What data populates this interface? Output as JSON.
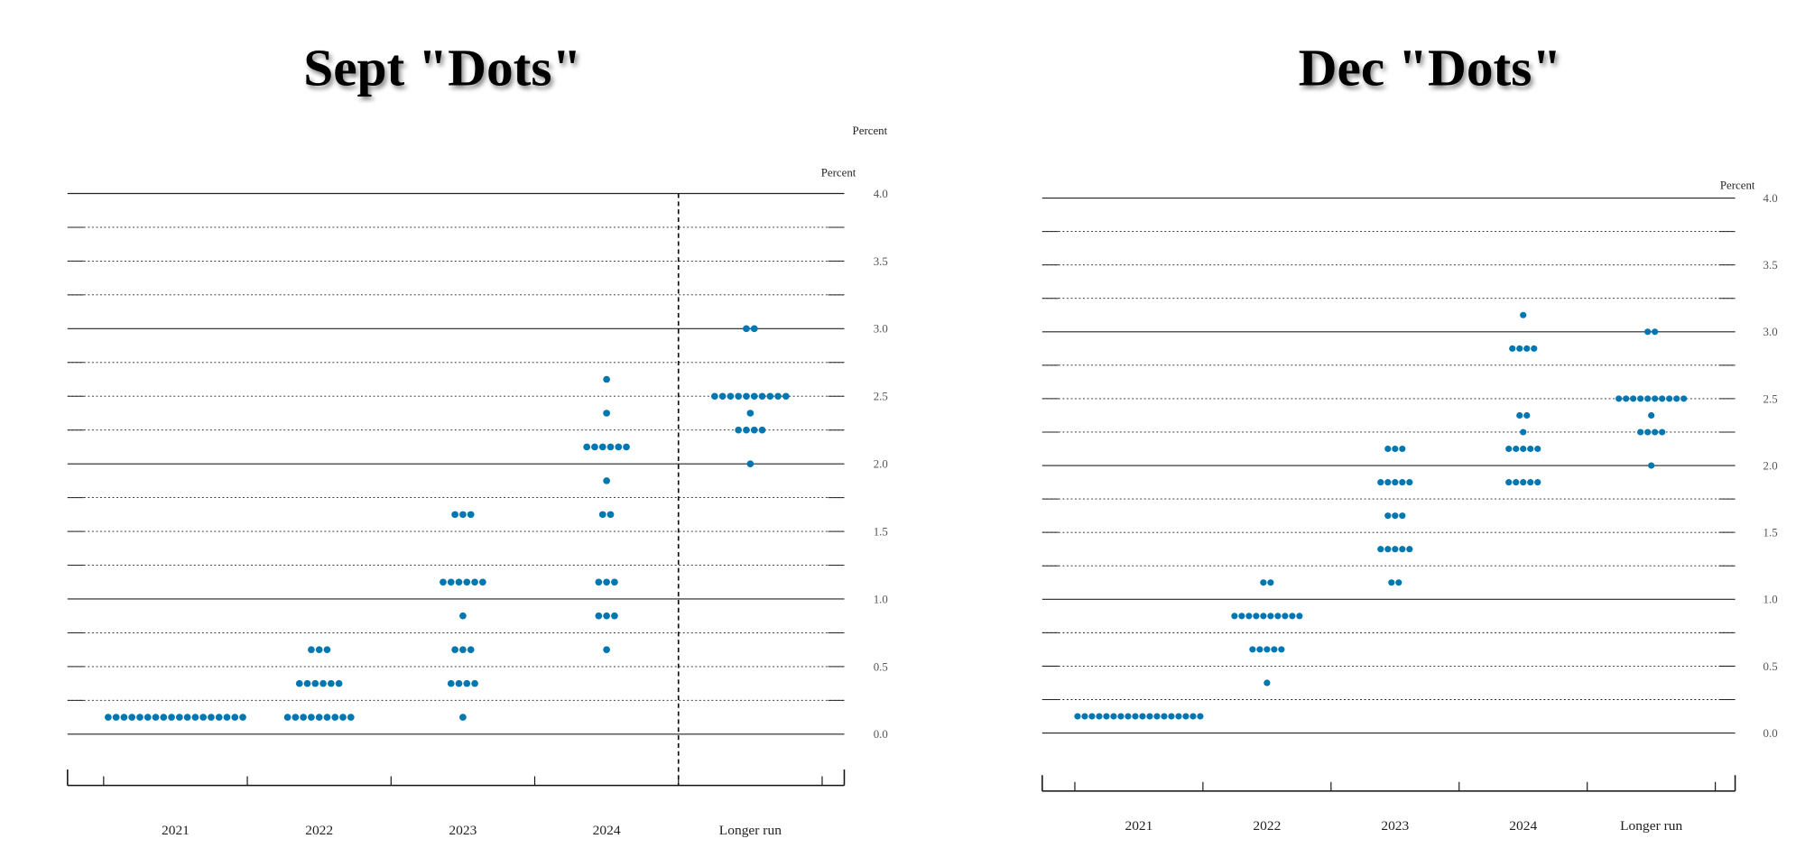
{
  "chart_data": [
    {
      "type": "dot",
      "title": "Sept \"Dots\"",
      "y_labels": [
        "Percent",
        "Percent"
      ],
      "categories": [
        "2021",
        "2022",
        "2023",
        "2024",
        "Longer run"
      ],
      "values": [
        [
          0.125,
          0.125,
          0.125,
          0.125,
          0.125,
          0.125,
          0.125,
          0.125,
          0.125,
          0.125,
          0.125,
          0.125,
          0.125,
          0.125,
          0.125,
          0.125,
          0.125,
          0.125
        ],
        [
          0.125,
          0.125,
          0.125,
          0.125,
          0.125,
          0.125,
          0.125,
          0.125,
          0.125,
          0.375,
          0.375,
          0.375,
          0.375,
          0.375,
          0.375,
          0.625,
          0.625,
          0.625
        ],
        [
          0.125,
          0.375,
          0.375,
          0.375,
          0.375,
          0.625,
          0.625,
          0.625,
          0.875,
          1.125,
          1.125,
          1.125,
          1.125,
          1.125,
          1.125,
          1.625,
          1.625,
          1.625
        ],
        [
          0.625,
          0.875,
          0.875,
          0.875,
          1.125,
          1.125,
          1.125,
          1.625,
          1.625,
          1.875,
          2.125,
          2.125,
          2.125,
          2.125,
          2.125,
          2.125,
          2.375,
          2.625
        ],
        [
          2.0,
          2.25,
          2.25,
          2.25,
          2.25,
          2.375,
          2.5,
          2.5,
          2.5,
          2.5,
          2.5,
          2.5,
          2.5,
          2.5,
          2.5,
          2.5,
          3.0,
          3.0
        ]
      ],
      "color": "#0077b0",
      "divider": true,
      "ylim": [
        0,
        4
      ],
      "yticks": [
        {
          "value": 0,
          "label": "0.0"
        },
        {
          "value": 0.5,
          "label": "0.5"
        },
        {
          "value": 1,
          "label": "1.0"
        },
        {
          "value": 1.5,
          "label": "1.5"
        },
        {
          "value": 2,
          "label": "2.0"
        },
        {
          "value": 2.5,
          "label": "2.5"
        },
        {
          "value": 3,
          "label": "3.0"
        },
        {
          "value": 3.5,
          "label": "3.5"
        },
        {
          "value": 4,
          "label": "4.0"
        }
      ],
      "grid_lines": [
        0,
        0.25,
        0.5,
        0.75,
        1,
        1.25,
        1.5,
        1.75,
        2,
        2.25,
        2.5,
        2.75,
        3,
        3.25,
        3.5,
        3.75,
        4
      ]
    },
    {
      "type": "dot",
      "title": "Dec \"Dots\"",
      "y_labels": [
        "Percent"
      ],
      "categories": [
        "2021",
        "2022",
        "2023",
        "2024",
        "Longer run"
      ],
      "values": [
        [
          0.125,
          0.125,
          0.125,
          0.125,
          0.125,
          0.125,
          0.125,
          0.125,
          0.125,
          0.125,
          0.125,
          0.125,
          0.125,
          0.125,
          0.125,
          0.125,
          0.125,
          0.125
        ],
        [
          0.375,
          0.625,
          0.625,
          0.625,
          0.625,
          0.625,
          0.875,
          0.875,
          0.875,
          0.875,
          0.875,
          0.875,
          0.875,
          0.875,
          0.875,
          0.875,
          1.125,
          1.125
        ],
        [
          1.125,
          1.125,
          1.375,
          1.375,
          1.375,
          1.375,
          1.375,
          1.625,
          1.625,
          1.625,
          1.875,
          1.875,
          1.875,
          1.875,
          1.875,
          2.125,
          2.125,
          2.125
        ],
        [
          1.875,
          1.875,
          1.875,
          1.875,
          1.875,
          2.125,
          2.125,
          2.125,
          2.125,
          2.125,
          2.25,
          2.375,
          2.375,
          2.875,
          2.875,
          2.875,
          2.875,
          3.125
        ],
        [
          2.0,
          2.25,
          2.25,
          2.25,
          2.25,
          2.375,
          2.5,
          2.5,
          2.5,
          2.5,
          2.5,
          2.5,
          2.5,
          2.5,
          2.5,
          2.5,
          3.0,
          3.0
        ]
      ],
      "color": "#0077b0",
      "divider": false,
      "ylim": [
        0,
        4
      ],
      "yticks": [
        {
          "value": 0,
          "label": "0.0"
        },
        {
          "value": 0.5,
          "label": "0.5"
        },
        {
          "value": 1,
          "label": "1.0"
        },
        {
          "value": 1.5,
          "label": "1.5"
        },
        {
          "value": 2,
          "label": "2.0"
        },
        {
          "value": 2.5,
          "label": "2.5"
        },
        {
          "value": 3,
          "label": "3.0"
        },
        {
          "value": 3.5,
          "label": "3.5"
        },
        {
          "value": 4,
          "label": "4.0"
        }
      ],
      "grid_lines": [
        0,
        0.25,
        0.5,
        0.75,
        1,
        1.25,
        1.5,
        1.75,
        2,
        2.25,
        2.5,
        2.75,
        3,
        3.25,
        3.5,
        3.75,
        4
      ]
    }
  ]
}
